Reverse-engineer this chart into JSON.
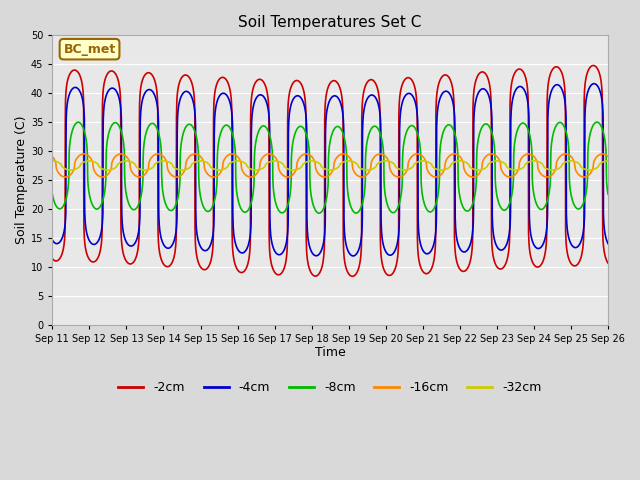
{
  "title": "Soil Temperatures Set C",
  "xlabel": "Time",
  "ylabel": "Soil Temperature (C)",
  "ylim": [
    0,
    50
  ],
  "yticks": [
    0,
    5,
    10,
    15,
    20,
    25,
    30,
    35,
    40,
    45,
    50
  ],
  "x_tick_labels": [
    "Sep 11",
    "Sep 12",
    "Sep 13",
    "Sep 14",
    "Sep 15",
    "Sep 16",
    "Sep 17",
    "Sep 18",
    "Sep 19",
    "Sep 20",
    "Sep 21",
    "Sep 22",
    "Sep 23",
    "Sep 24",
    "Sep 25",
    "Sep 26"
  ],
  "bg_color": "#d9d9d9",
  "plot_bg_color": "#e8e8e8",
  "annotation_text": "BC_met",
  "annotation_bg": "#ffffcc",
  "annotation_border": "#996600",
  "legend_entries": [
    "-2cm",
    "-4cm",
    "-8cm",
    "-16cm",
    "-32cm"
  ],
  "line_colors": [
    "#cc0000",
    "#0000cc",
    "#00bb00",
    "#ff8800",
    "#cccc00"
  ],
  "line_widths": [
    1.2,
    1.2,
    1.2,
    1.2,
    1.2
  ],
  "figsize": [
    6.4,
    4.8
  ],
  "dpi": 100
}
